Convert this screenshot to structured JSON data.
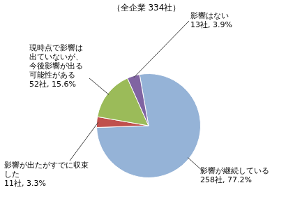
{
  "chart_data": {
    "type": "pie",
    "title": "（全企業 334社）",
    "categories": [
      "影響が継続している",
      "影響が出たがすでに収束した",
      "現時点で影響は出ていないが、今後影響が出る可能性がある",
      "影響はない"
    ],
    "values": [
      258,
      11,
      52,
      13
    ],
    "value_labels": [
      "258社, 77.2%",
      "11社, 3.3%",
      "52社, 15.6%",
      "13社, 3.9%"
    ],
    "colors": [
      "#95b3d7",
      "#c0504d",
      "#9bbb59",
      "#8064a2"
    ],
    "data_labels": true
  }
}
